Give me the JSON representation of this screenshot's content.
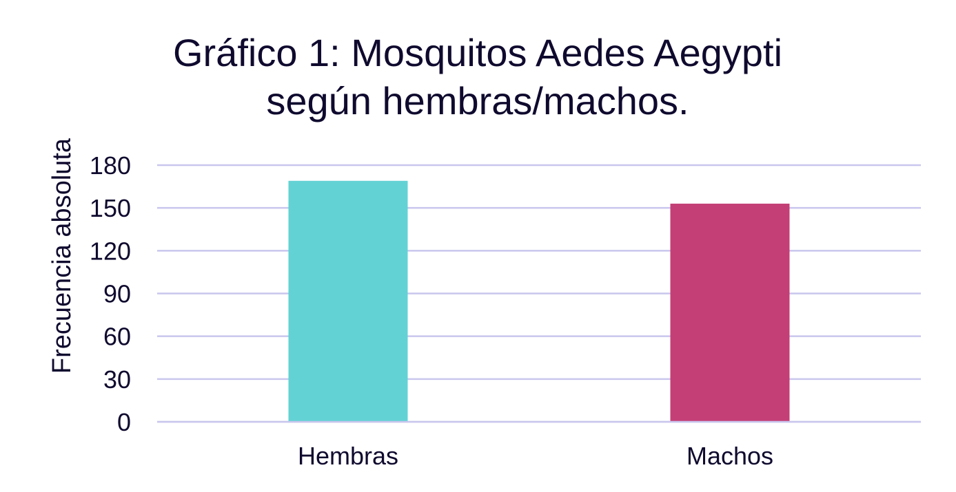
{
  "chart_data": {
    "type": "bar",
    "title_lines": [
      "Gráfico 1: Mosquitos Aedes Aegypti",
      "según hembras/machos."
    ],
    "xlabel": "",
    "ylabel": "Frecuencia absoluta",
    "categories": [
      "Hembras",
      "Machos"
    ],
    "values": [
      169,
      153
    ],
    "bar_colors": [
      "#63d2d4",
      "#c43f76"
    ],
    "ylim": [
      0,
      180
    ],
    "yticks": [
      0,
      30,
      60,
      90,
      120,
      150,
      180
    ],
    "grid": true,
    "legend": "none",
    "gridline_color": "#c9c6ee",
    "text_color": "#0f0a2e"
  }
}
